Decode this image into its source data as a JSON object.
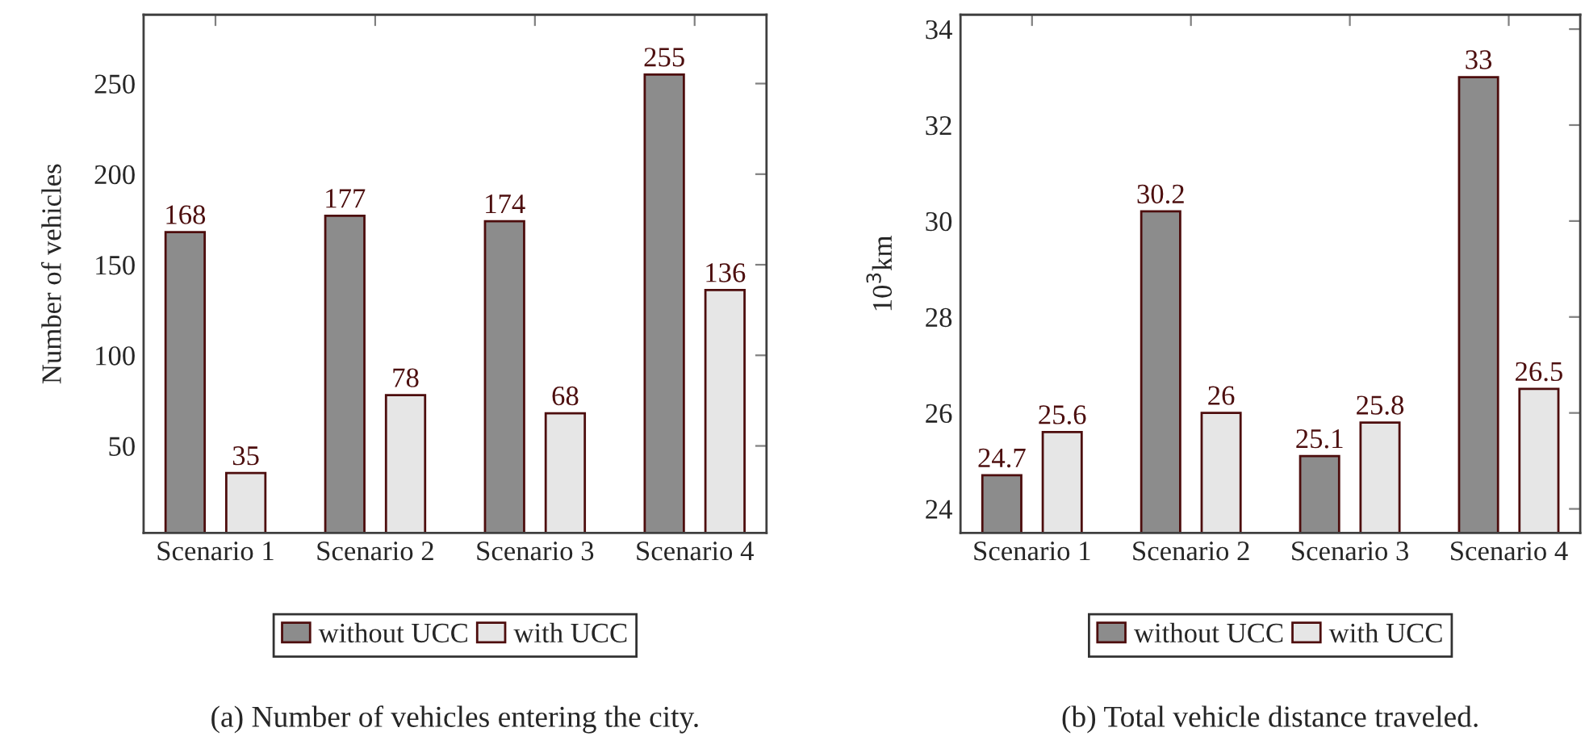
{
  "chart_data": [
    {
      "type": "bar",
      "categories": [
        "Scenario 1",
        "Scenario 2",
        "Scenario 3",
        "Scenario 4"
      ],
      "ylabel": "Number of vehicles",
      "ylim": [
        2,
        288
      ],
      "yticks": [
        50,
        100,
        150,
        200,
        250
      ],
      "data_labels": true,
      "legend": "bottom",
      "grid": false,
      "annotations": [
        "(a) Number of vehicles entering the city."
      ],
      "series": [
        {
          "name": "without UCC",
          "color": "#8c8c8c",
          "values": [
            168,
            177,
            174,
            255
          ]
        },
        {
          "name": "with UCC",
          "color": "#e6e6e6",
          "values": [
            35,
            78,
            68,
            136
          ]
        }
      ]
    },
    {
      "type": "bar",
      "categories": [
        "Scenario 1",
        "Scenario 2",
        "Scenario 3",
        "Scenario 4"
      ],
      "ylabel": "10$^{3}$km",
      "ylim": [
        23.5,
        34.3
      ],
      "yticks": [
        24,
        26,
        28,
        30,
        32,
        34
      ],
      "data_labels": true,
      "legend": "bottom",
      "grid": false,
      "annotations": [
        "(b) Total vehicle distance traveled."
      ],
      "series": [
        {
          "name": "without UCC",
          "color": "#8c8c8c",
          "values": [
            24.7,
            30.2,
            25.1,
            33
          ]
        },
        {
          "name": "with UCC",
          "color": "#e6e6e6",
          "values": [
            25.6,
            26,
            25.8,
            26.5
          ]
        }
      ]
    }
  ]
}
